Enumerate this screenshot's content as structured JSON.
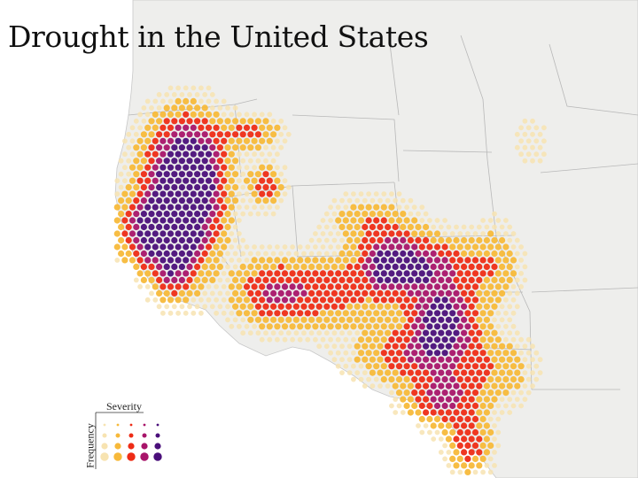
{
  "title": "Drought in the United States",
  "legend": {
    "severity_label": "Severity",
    "frequency_label": "Frequency",
    "colors": [
      "#f7e3b1",
      "#f7b93a",
      "#ee2c16",
      "#a8156a",
      "#4a0f7a"
    ]
  },
  "basemap": {
    "land_color": "#eeeeec",
    "border_color": "#b8b8b8",
    "ocean_color": "#ffffff"
  }
}
